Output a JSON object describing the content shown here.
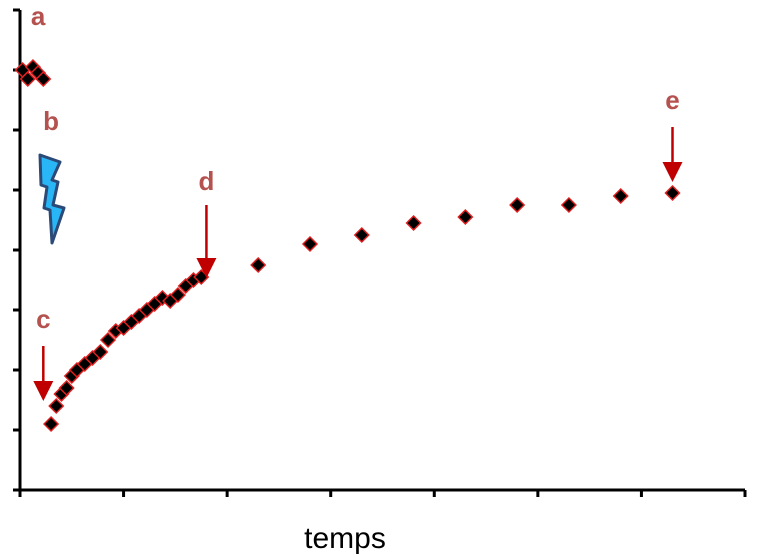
{
  "chart_data": {
    "type": "scatter",
    "title": "",
    "xlabel": "temps",
    "ylabel": "",
    "xlim": [
      0,
      14
    ],
    "ylim": [
      0,
      8
    ],
    "grid": false,
    "x_tick_count": 7,
    "y_tick_count": 8,
    "colors": {
      "marker_fill": "#000000",
      "marker_edge": "#e02020",
      "annotation": "#b5524f",
      "arrow": "#c00000",
      "bolt_fill": "#29b6f6",
      "bolt_edge": "#2b4a78"
    },
    "series": [
      {
        "points": [
          {
            "x": 0.05,
            "y": 7.0
          },
          {
            "x": 0.15,
            "y": 6.85
          },
          {
            "x": 0.25,
            "y": 7.05
          },
          {
            "x": 0.35,
            "y": 6.95
          },
          {
            "x": 0.45,
            "y": 6.85
          },
          {
            "x": 0.6,
            "y": 1.1
          },
          {
            "x": 0.7,
            "y": 1.4
          },
          {
            "x": 0.8,
            "y": 1.6
          },
          {
            "x": 0.9,
            "y": 1.7
          },
          {
            "x": 1.0,
            "y": 1.9
          },
          {
            "x": 1.1,
            "y": 2.0
          },
          {
            "x": 1.25,
            "y": 2.1
          },
          {
            "x": 1.4,
            "y": 2.2
          },
          {
            "x": 1.55,
            "y": 2.3
          },
          {
            "x": 1.7,
            "y": 2.5
          },
          {
            "x": 1.85,
            "y": 2.65
          },
          {
            "x": 2.0,
            "y": 2.7
          },
          {
            "x": 2.15,
            "y": 2.8
          },
          {
            "x": 2.3,
            "y": 2.9
          },
          {
            "x": 2.45,
            "y": 3.0
          },
          {
            "x": 2.6,
            "y": 3.1
          },
          {
            "x": 2.75,
            "y": 3.2
          },
          {
            "x": 2.9,
            "y": 3.15
          },
          {
            "x": 3.05,
            "y": 3.25
          },
          {
            "x": 3.2,
            "y": 3.4
          },
          {
            "x": 3.35,
            "y": 3.5
          },
          {
            "x": 3.5,
            "y": 3.55
          },
          {
            "x": 4.6,
            "y": 3.75
          },
          {
            "x": 5.6,
            "y": 4.1
          },
          {
            "x": 6.6,
            "y": 4.25
          },
          {
            "x": 7.6,
            "y": 4.45
          },
          {
            "x": 8.6,
            "y": 4.55
          },
          {
            "x": 9.6,
            "y": 4.75
          },
          {
            "x": 10.6,
            "y": 4.75
          },
          {
            "x": 11.6,
            "y": 4.9
          },
          {
            "x": 12.6,
            "y": 4.95
          }
        ]
      }
    ],
    "annotations": [
      {
        "label": "a",
        "x": 0.35,
        "y": 7.75,
        "arrow": false
      },
      {
        "label": "b",
        "x": 0.6,
        "y": 6.0,
        "arrow": false,
        "icon": "lightning-bolt-icon"
      },
      {
        "label": "c",
        "x": 0.45,
        "y": 2.7,
        "arrow": true,
        "arrow_from": 2.4,
        "arrow_to": 1.65
      },
      {
        "label": "d",
        "x": 3.6,
        "y": 5.0,
        "arrow": true,
        "arrow_from": 4.75,
        "arrow_to": 3.7
      },
      {
        "label": "e",
        "x": 12.6,
        "y": 6.35,
        "arrow": true,
        "arrow_from": 6.05,
        "arrow_to": 5.3
      }
    ]
  }
}
